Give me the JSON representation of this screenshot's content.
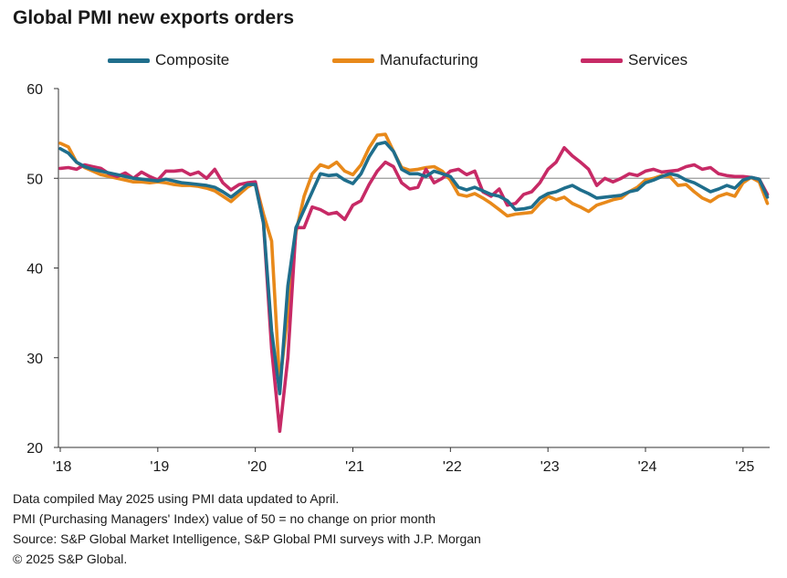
{
  "title": "Global PMI new exports orders",
  "colors": {
    "composite": "#1f6e8c",
    "manufacturing": "#e8891a",
    "services": "#c72a66",
    "reference_line": "#9a9a9a",
    "axis": "#333333"
  },
  "chart_data": {
    "type": "line",
    "title": "Global PMI new exports orders",
    "xlabel": "",
    "ylabel": "",
    "ylim": [
      20,
      60
    ],
    "yticks": [
      20,
      30,
      40,
      50,
      60
    ],
    "x_range": [
      "2018-01",
      "2025-04"
    ],
    "x_tick_labels": [
      "'18",
      "'19",
      "'20",
      "'21",
      "'22",
      "'23",
      "'24",
      "'25"
    ],
    "reference_line": 50,
    "grid": false,
    "legend_position": "top",
    "series": [
      {
        "name": "Composite",
        "color": "#1f6e8c",
        "values": [
          53.3,
          52.8,
          51.8,
          51.3,
          51.0,
          50.8,
          50.6,
          50.4,
          50.2,
          50.0,
          49.9,
          49.8,
          49.7,
          49.9,
          49.7,
          49.5,
          49.4,
          49.3,
          49.2,
          49.0,
          48.5,
          47.9,
          48.6,
          49.3,
          49.3,
          45.0,
          33.0,
          26.0,
          38.0,
          44.5,
          46.5,
          48.5,
          50.5,
          50.3,
          50.4,
          49.8,
          49.4,
          50.5,
          52.4,
          53.8,
          54.0,
          53.0,
          51.0,
          50.5,
          50.5,
          50.2,
          50.8,
          50.5,
          50.2,
          49.0,
          48.7,
          49.0,
          48.6,
          48.2,
          48.0,
          47.5,
          46.5,
          46.6,
          46.8,
          47.8,
          48.3,
          48.5,
          48.9,
          49.2,
          48.7,
          48.3,
          47.8,
          47.9,
          48.0,
          48.1,
          48.5,
          48.7,
          49.5,
          49.8,
          50.2,
          50.5,
          50.3,
          49.8,
          49.5,
          49.0,
          48.5,
          48.8,
          49.2,
          48.9,
          49.8,
          50.1,
          49.9,
          47.9
        ]
      },
      {
        "name": "Manufacturing",
        "color": "#e8891a",
        "values": [
          53.9,
          53.5,
          51.8,
          51.2,
          50.8,
          50.4,
          50.2,
          50.0,
          49.8,
          49.6,
          49.6,
          49.5,
          49.6,
          49.5,
          49.3,
          49.2,
          49.2,
          49.1,
          48.9,
          48.6,
          48.0,
          47.4,
          48.2,
          49.0,
          49.5,
          46.0,
          43.0,
          27.0,
          35.0,
          44.0,
          48.0,
          50.5,
          51.5,
          51.2,
          51.8,
          50.8,
          50.4,
          51.5,
          53.4,
          54.8,
          54.9,
          53.0,
          51.2,
          50.9,
          51.0,
          51.2,
          51.3,
          50.8,
          49.8,
          48.2,
          48.0,
          48.3,
          47.8,
          47.2,
          46.5,
          45.8,
          46.0,
          46.1,
          46.2,
          47.2,
          48.0,
          47.6,
          47.9,
          47.2,
          46.8,
          46.3,
          47.0,
          47.3,
          47.6,
          47.8,
          48.5,
          49.0,
          49.8,
          50.0,
          50.3,
          50.2,
          49.2,
          49.3,
          48.5,
          47.8,
          47.4,
          48.0,
          48.3,
          48.0,
          49.5,
          50.1,
          49.6,
          47.2
        ]
      },
      {
        "name": "Services",
        "color": "#c72a66",
        "values": [
          51.1,
          51.2,
          51.0,
          51.5,
          51.3,
          51.1,
          50.5,
          50.2,
          50.6,
          50.0,
          50.7,
          50.2,
          49.8,
          50.8,
          50.8,
          50.9,
          50.4,
          50.7,
          50.0,
          51.0,
          49.5,
          48.7,
          49.3,
          49.5,
          49.6,
          45.0,
          31.0,
          21.8,
          30.0,
          44.5,
          44.5,
          46.8,
          46.5,
          46.0,
          46.2,
          45.4,
          47.0,
          47.5,
          49.3,
          50.8,
          51.8,
          51.3,
          49.5,
          48.8,
          49.0,
          51.0,
          49.5,
          50.0,
          50.8,
          51.0,
          50.4,
          50.8,
          48.5,
          48.0,
          48.8,
          47.0,
          47.2,
          48.2,
          48.5,
          49.5,
          51.0,
          51.8,
          53.4,
          52.5,
          51.8,
          51.0,
          49.2,
          50.0,
          49.6,
          50.0,
          50.5,
          50.3,
          50.8,
          51.0,
          50.7,
          50.8,
          50.9,
          51.3,
          51.5,
          51.0,
          51.2,
          50.5,
          50.3,
          50.2,
          50.2,
          50.1,
          49.9,
          48.2
        ]
      }
    ]
  },
  "notes": [
    "Data compiled May 2025 using PMI data updated to April.",
    "PMI (Purchasing Managers' Index) value of 50 = no change on prior month",
    "Source: S&P Global Market Intelligence, S&P Global PMI surveys with J.P. Morgan",
    "© 2025 S&P Global."
  ]
}
